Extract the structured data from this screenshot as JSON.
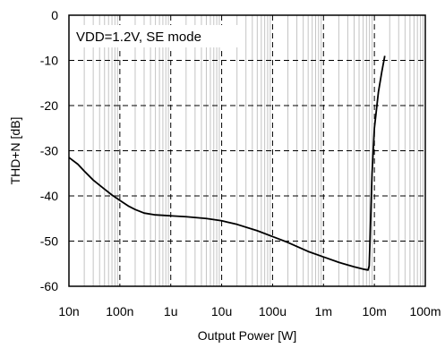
{
  "chart_data": {
    "type": "line",
    "title": "",
    "xlabel": "Output Power [W]",
    "ylabel": "THD+N [dB]",
    "x_scale": "log",
    "xlim": [
      1e-08,
      0.1
    ],
    "ylim": [
      -60,
      0
    ],
    "x_ticks": [
      1e-08,
      1e-07,
      1e-06,
      1e-05,
      0.0001,
      0.001,
      0.01,
      0.1
    ],
    "x_tick_labels": [
      "10n",
      "100n",
      "1u",
      "10u",
      "100u",
      "1m",
      "10m",
      "100m"
    ],
    "y_ticks": [
      0,
      -10,
      -20,
      -30,
      -40,
      -50,
      -60
    ],
    "y_tick_labels": [
      "0",
      "-10",
      "-20",
      "-30",
      "-40",
      "-50",
      "-60"
    ],
    "grid": true,
    "annotation": "VDD=1.2V, SE mode",
    "line_color": "#000000",
    "series": [
      {
        "x": [
          1e-08,
          1.5e-08,
          2e-08,
          3e-08,
          5e-08,
          7e-08,
          1e-07,
          1.5e-07,
          2e-07,
          3e-07,
          5e-07,
          7e-07,
          1e-06,
          2e-06,
          5e-06,
          1e-05,
          2e-05,
          5e-05,
          0.0001,
          0.0002,
          0.0005,
          0.001,
          0.002,
          0.004,
          0.006,
          0.0075,
          0.0079,
          0.0082,
          0.0086,
          0.009,
          0.01,
          0.012,
          0.014,
          0.016
        ],
        "y": [
          -31.5,
          -33.0,
          -34.5,
          -36.5,
          -38.5,
          -39.8,
          -41.0,
          -42.3,
          -43.0,
          -43.8,
          -44.2,
          -44.3,
          -44.4,
          -44.6,
          -45.0,
          -45.5,
          -46.3,
          -47.7,
          -49.0,
          -50.3,
          -52.3,
          -53.5,
          -54.7,
          -55.7,
          -56.2,
          -56.4,
          -55.5,
          -50.0,
          -42.0,
          -35.0,
          -25.0,
          -17.0,
          -12.5,
          -9.0
        ]
      }
    ]
  }
}
